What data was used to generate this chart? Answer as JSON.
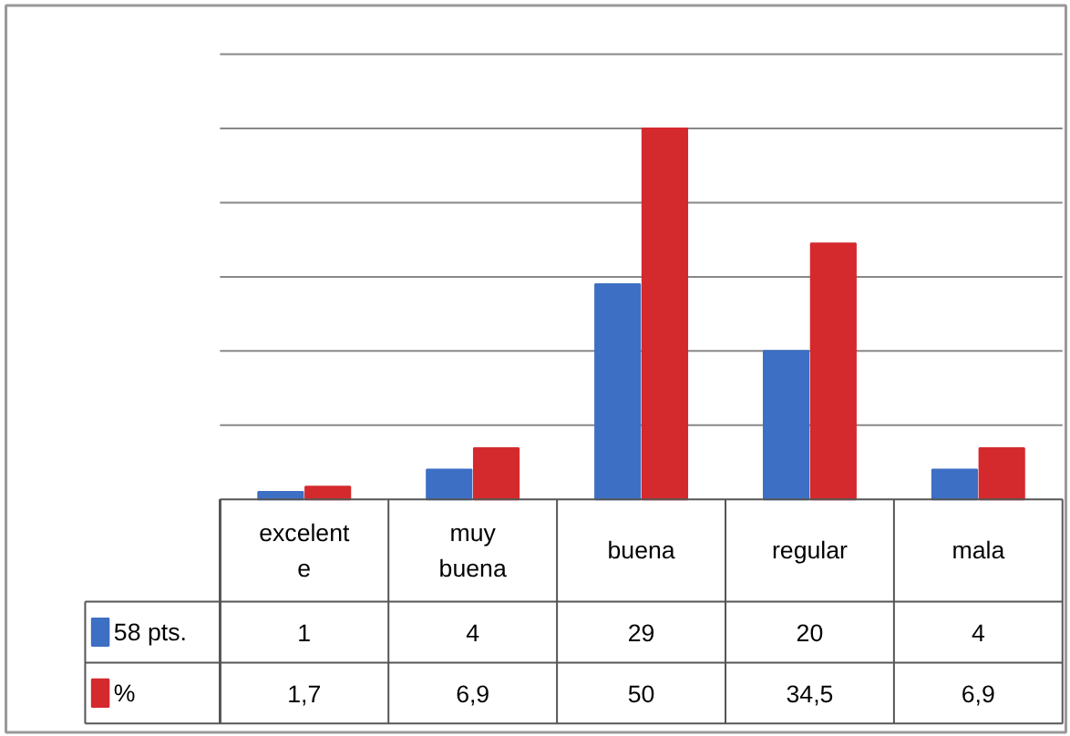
{
  "chart_data": {
    "type": "bar",
    "categories": [
      "excelente",
      "muy buena",
      "buena",
      "regular",
      "mala"
    ],
    "series": [
      {
        "name": "58 pts.",
        "color": "#3d6fc4",
        "values": [
          1,
          4,
          29,
          20,
          4
        ],
        "value_labels": [
          "1",
          "4",
          "29",
          "20",
          "4"
        ]
      },
      {
        "name": "%",
        "color": "#d42a2e",
        "values": [
          1.7,
          6.9,
          50,
          34.5,
          6.9
        ],
        "value_labels": [
          "1,7",
          "6,9",
          "50",
          "34,5",
          "6,9"
        ]
      }
    ],
    "ylim": [
      0,
      60
    ],
    "yticks": [
      {
        "value": 0,
        "label": null
      },
      {
        "value": 10,
        "label": null
      },
      {
        "value": 20,
        "label": null
      },
      {
        "value": 30,
        "label": null
      },
      {
        "value": 40,
        "label": null
      },
      {
        "value": 50,
        "label": null
      },
      {
        "value": 60,
        "label": null
      }
    ],
    "grid": "y",
    "legend": "left"
  }
}
